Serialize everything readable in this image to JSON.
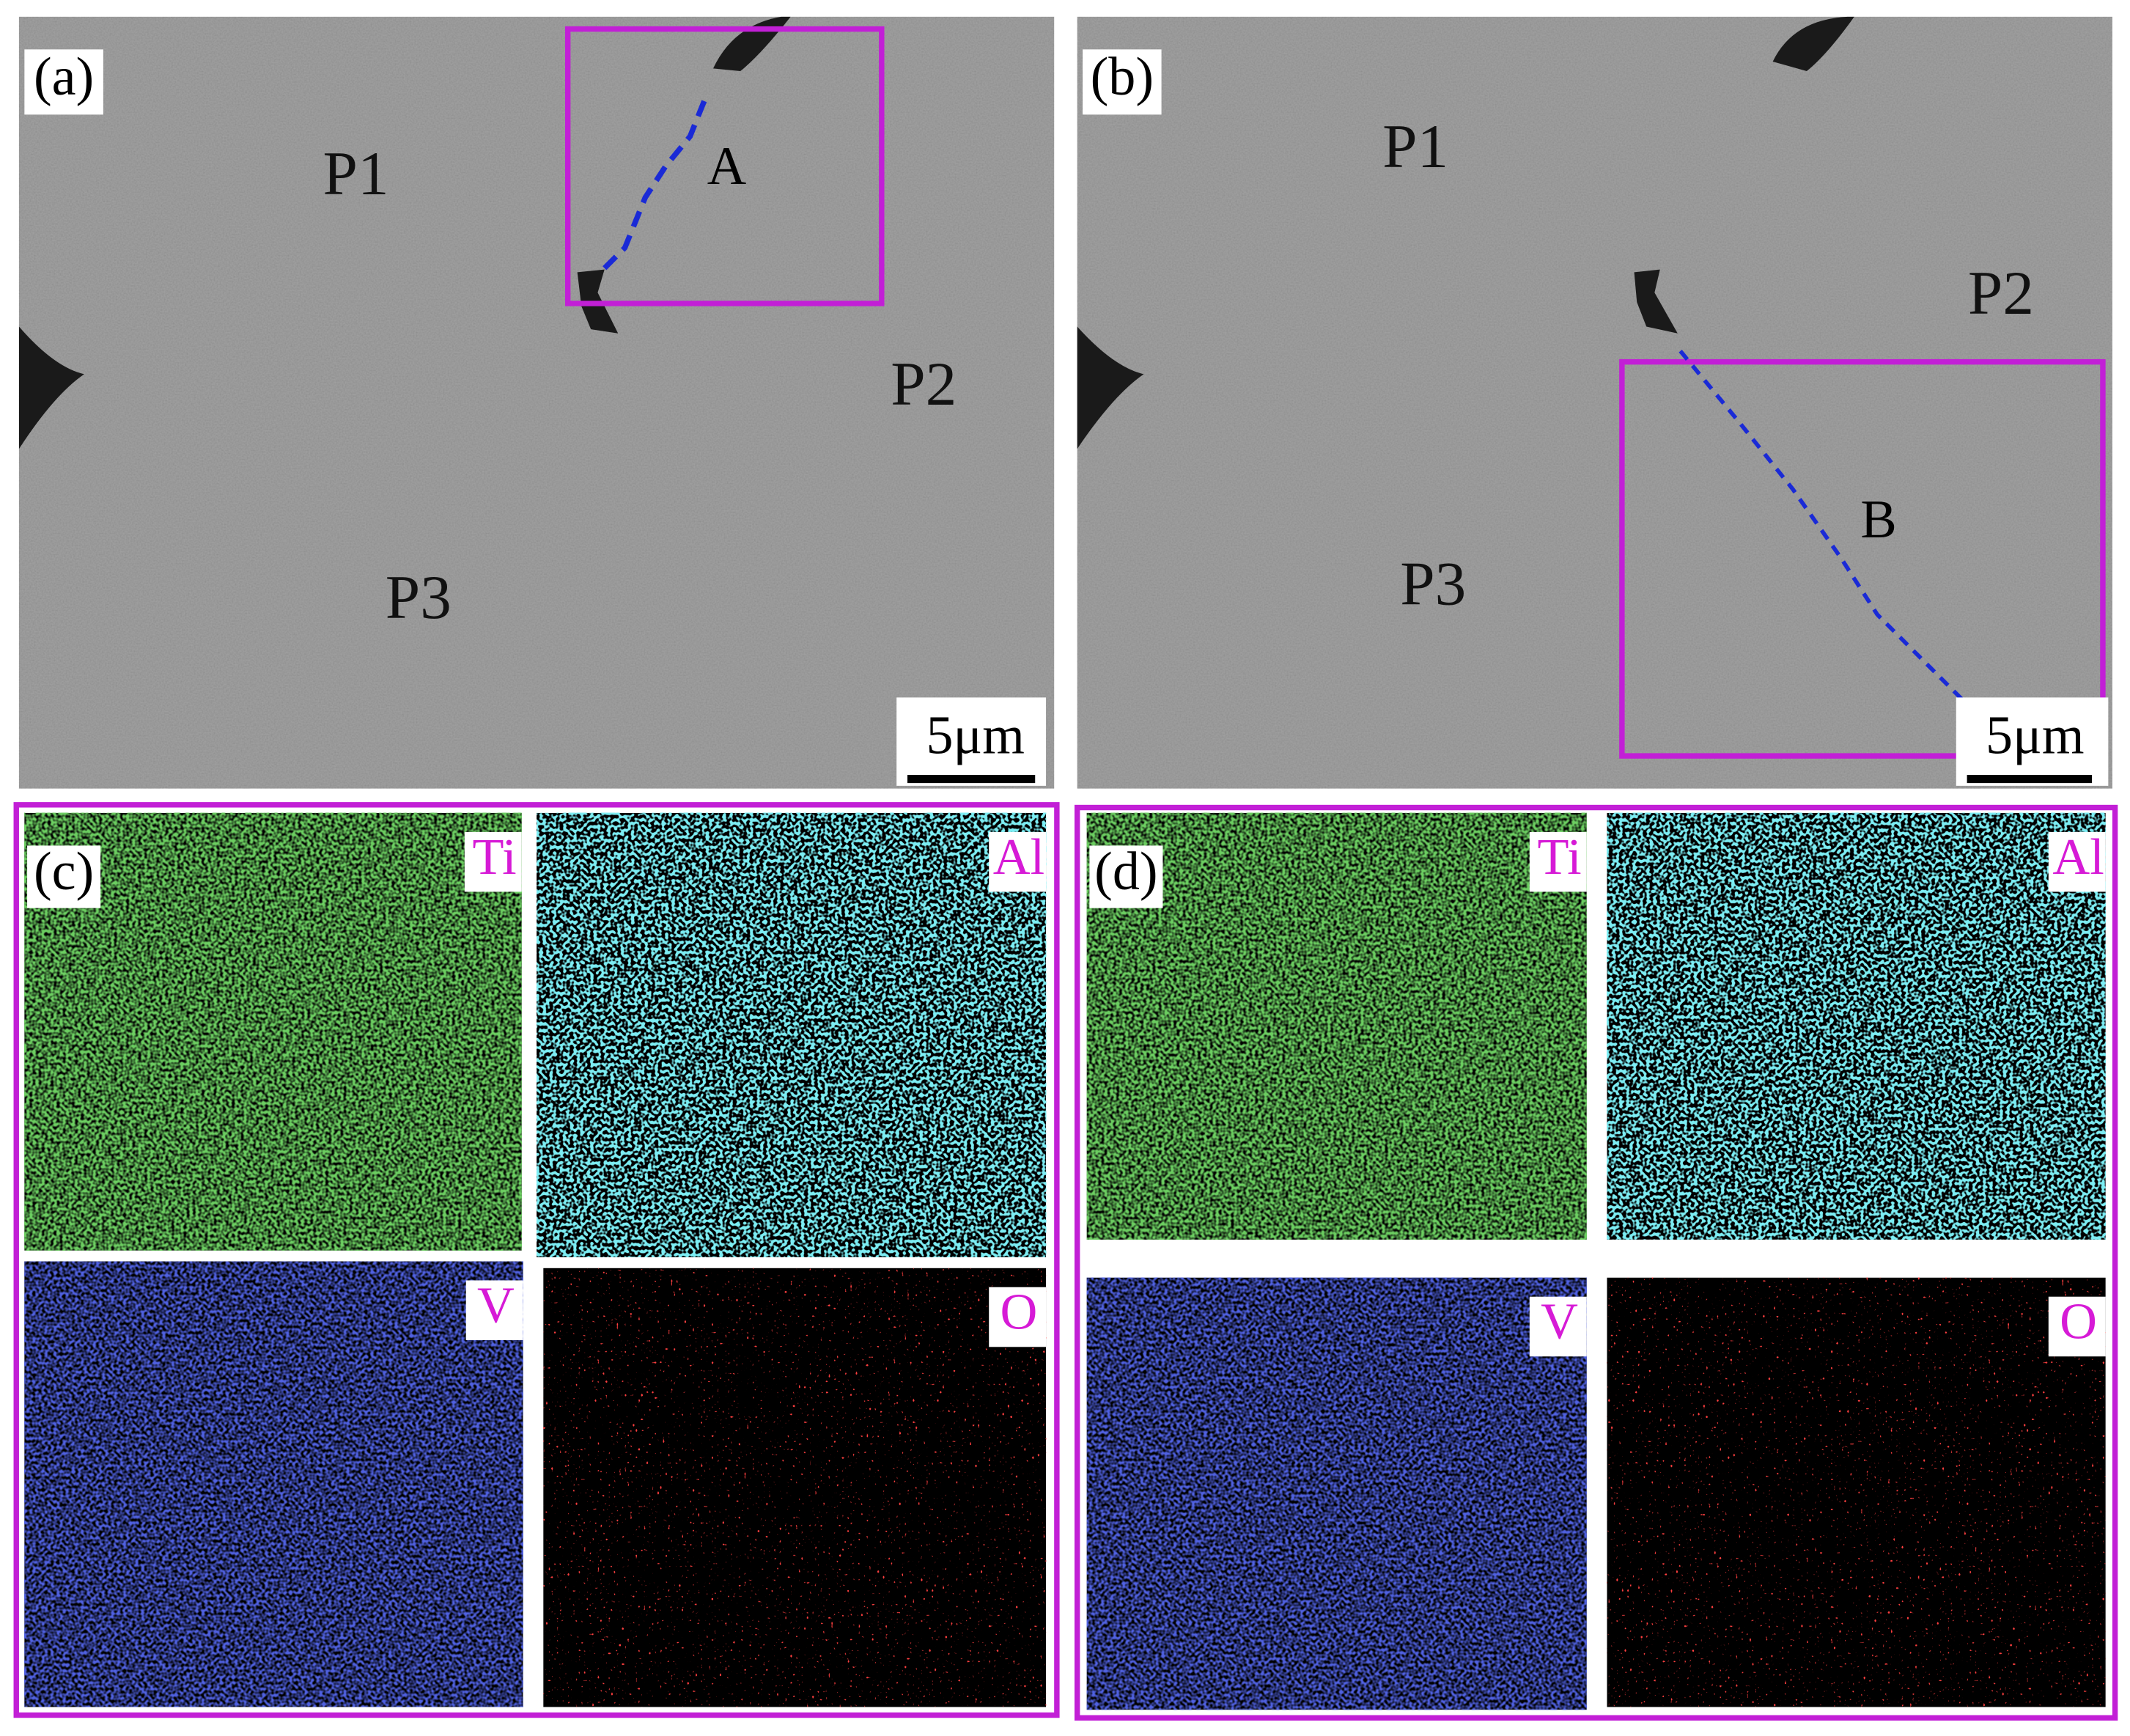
{
  "panels": [
    {
      "label": "(a)",
      "regions": [
        "P1",
        "P2",
        "P3"
      ],
      "box_label": "A",
      "scale_bar": "5μm"
    },
    {
      "label": "(b)",
      "regions": [
        "P1",
        "P2",
        "P3"
      ],
      "box_label": "B",
      "scale_bar": "5μm"
    },
    {
      "label": "(c)",
      "maps": [
        "Ti",
        "Al",
        "V",
        "O"
      ]
    },
    {
      "label": "(d)",
      "maps": [
        "Ti",
        "Al",
        "V",
        "O"
      ]
    }
  ]
}
